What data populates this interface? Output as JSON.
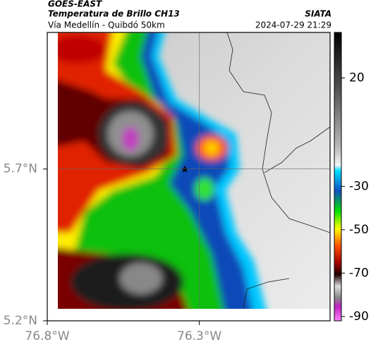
{
  "header": {
    "title": "GOES-EAST",
    "subtitle": "Temperatura de Brillo CH13",
    "route": "Vía Medellín - Quibdó 50km",
    "source": "SIATA",
    "timestamp": "2024-07-29 21:29"
  },
  "map": {
    "lon_lim": [
      -76.8,
      -75.87
    ],
    "lat_lim": [
      5.2,
      6.15
    ],
    "lon_ticks": [
      {
        "value": -76.8,
        "label": "76.8°W"
      },
      {
        "value": -76.3,
        "label": "76.3°W"
      }
    ],
    "lat_ticks": [
      {
        "value": 5.7,
        "label": "5.7°N"
      },
      {
        "value": 5.2,
        "label": "5.2°N"
      }
    ]
  },
  "colorbar": {
    "lim": [
      -92,
      41
    ],
    "ticks": [
      20,
      -30,
      -50,
      -70,
      -90
    ]
  }
}
